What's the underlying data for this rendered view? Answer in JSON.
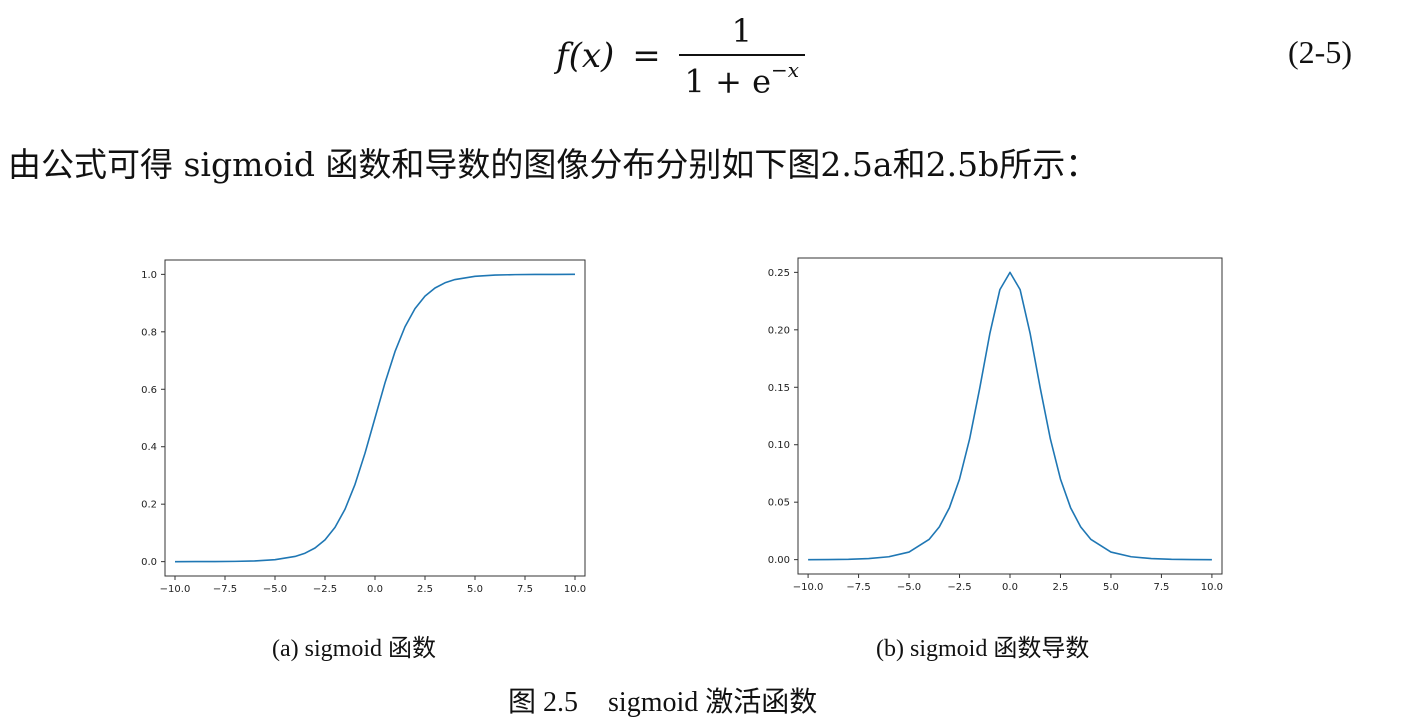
{
  "formula": {
    "lhs": "f(x)",
    "equals": "=",
    "numerator": "1",
    "denominator_base": "1 + e",
    "denominator_exp": "−x"
  },
  "equation_number": "(2-5)",
  "paragraph": "由公式可得 sigmoid 函数和导数的图像分布分别如下图2.5a和2.5b所示：",
  "chart_data": [
    {
      "type": "line",
      "xlim": [
        -10.5,
        10.5
      ],
      "ylim": [
        -0.05,
        1.05
      ],
      "xticks": [
        "−10.0",
        "−7.5",
        "−5.0",
        "−2.5",
        "0.0",
        "2.5",
        "5.0",
        "7.5",
        "10.0"
      ],
      "xtick_values": [
        -10,
        -7.5,
        -5,
        -2.5,
        0,
        2.5,
        5,
        7.5,
        10
      ],
      "yticks": [
        "0.0",
        "0.2",
        "0.4",
        "0.6",
        "0.8",
        "1.0"
      ],
      "ytick_values": [
        0,
        0.2,
        0.4,
        0.6,
        0.8,
        1.0
      ],
      "grid": false,
      "line_color": "#1f77b4",
      "x": [
        -10,
        -9,
        -8,
        -7,
        -6,
        -5,
        -4,
        -3.5,
        -3,
        -2.5,
        -2,
        -1.5,
        -1,
        -0.5,
        0,
        0.5,
        1,
        1.5,
        2,
        2.5,
        3,
        3.5,
        4,
        5,
        6,
        7,
        8,
        9,
        10
      ],
      "y": [
        0.0,
        0.0001,
        0.0003,
        0.0009,
        0.0025,
        0.0067,
        0.018,
        0.0293,
        0.0474,
        0.0759,
        0.1192,
        0.1824,
        0.2689,
        0.3775,
        0.5,
        0.6225,
        0.7311,
        0.8176,
        0.8808,
        0.9241,
        0.9526,
        0.9707,
        0.982,
        0.9933,
        0.9975,
        0.9991,
        0.9997,
        0.9999,
        1.0
      ],
      "caption": "(a) sigmoid 函数"
    },
    {
      "type": "line",
      "xlim": [
        -10.5,
        10.5
      ],
      "ylim": [
        -0.0125,
        0.2625
      ],
      "xticks": [
        "−10.0",
        "−7.5",
        "−5.0",
        "−2.5",
        "0.0",
        "2.5",
        "5.0",
        "7.5",
        "10.0"
      ],
      "xtick_values": [
        -10,
        -7.5,
        -5,
        -2.5,
        0,
        2.5,
        5,
        7.5,
        10
      ],
      "yticks": [
        "0.00",
        "0.05",
        "0.10",
        "0.15",
        "0.20",
        "0.25"
      ],
      "ytick_values": [
        0,
        0.05,
        0.1,
        0.15,
        0.2,
        0.25
      ],
      "grid": false,
      "line_color": "#1f77b4",
      "x": [
        -10,
        -9,
        -8,
        -7,
        -6,
        -5,
        -4,
        -3.5,
        -3,
        -2.5,
        -2,
        -1.5,
        -1,
        -0.5,
        0,
        0.5,
        1,
        1.5,
        2,
        2.5,
        3,
        3.5,
        4,
        5,
        6,
        7,
        8,
        9,
        10
      ],
      "y": [
        0.0,
        0.0001,
        0.0003,
        0.0009,
        0.0025,
        0.0066,
        0.0177,
        0.0285,
        0.0452,
        0.0701,
        0.105,
        0.1491,
        0.1966,
        0.235,
        0.25,
        0.235,
        0.1966,
        0.1491,
        0.105,
        0.0701,
        0.0452,
        0.0285,
        0.0177,
        0.0066,
        0.0025,
        0.0009,
        0.0003,
        0.0001,
        0.0
      ],
      "caption": "(b) sigmoid 函数导数"
    }
  ],
  "figure_caption": {
    "number": "图 2.5",
    "text": "sigmoid 激活函数"
  }
}
